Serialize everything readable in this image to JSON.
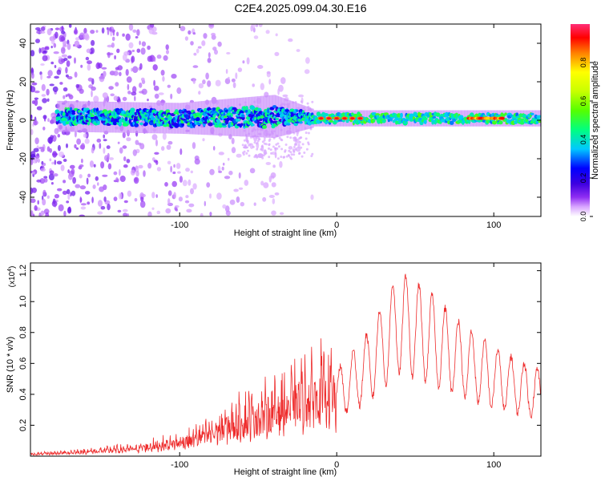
{
  "title": "C2E4.2025.099.04.30.E16",
  "chart_data": [
    {
      "type": "heatmap",
      "xlabel": "Height of straight line (km)",
      "ylabel": "Frequency (Hz)",
      "xlim": [
        -195,
        130
      ],
      "ylim": [
        -50,
        50
      ],
      "xticks": [
        -100,
        0,
        100
      ],
      "yticks": [
        -40,
        -20,
        0,
        20,
        40
      ],
      "colorbar": {
        "label": "Normalized spectral amplitude",
        "range": [
          0,
          1
        ],
        "ticks": [
          "0.0",
          "0.2",
          "0.4",
          "0.6",
          "0.8"
        ],
        "tick_values": [
          0.0,
          0.2,
          0.4,
          0.6,
          0.8
        ],
        "colors": [
          "#ffffff",
          "#d9a6ff",
          "#8f2ef2",
          "#3d00e0",
          "#0000ff",
          "#00c8ff",
          "#00ff80",
          "#a0ff00",
          "#ffff00",
          "#ff8000",
          "#ff0000",
          "#ff2e77"
        ]
      },
      "band": {
        "description_points": [
          {
            "x": -175,
            "center": 2,
            "halfwidth": 5
          },
          {
            "x": -100,
            "center": 1,
            "halfwidth": 5
          },
          {
            "x": -40,
            "center": 2,
            "halfwidth": 7
          },
          {
            "x": -15,
            "center": 1,
            "halfwidth": 3
          },
          {
            "x": 50,
            "center": 1,
            "halfwidth": 3
          },
          {
            "x": 130,
            "center": 1,
            "halfwidth": 3
          }
        ],
        "hotspots_x": [
          -10,
          -5,
          0,
          5,
          10,
          15,
          85,
          90,
          95,
          100,
          105
        ]
      }
    },
    {
      "type": "line",
      "xlabel": "Height of straight line (km)",
      "ylabel": "SNR (10 * v/v)",
      "multiplier_label": "(x10",
      "multiplier_exp": "4",
      "xlim": [
        -195,
        130
      ],
      "ylim": [
        0,
        1.25
      ],
      "xticks": [
        -100,
        0,
        100
      ],
      "yticks": [
        "0.2",
        "0.4",
        "0.6",
        "0.8",
        "1.0",
        "1.2"
      ],
      "ytick_values": [
        0.2,
        0.4,
        0.6,
        0.8,
        1.0,
        1.2
      ],
      "line_color": "#ee2b2b",
      "envelope": [
        {
          "x": -195,
          "y": 0.02
        },
        {
          "x": -160,
          "y": 0.05
        },
        {
          "x": -130,
          "y": 0.08
        },
        {
          "x": -100,
          "y": 0.15
        },
        {
          "x": -80,
          "y": 0.25
        },
        {
          "x": -60,
          "y": 0.4
        },
        {
          "x": -40,
          "y": 0.5
        },
        {
          "x": -20,
          "y": 0.65
        },
        {
          "x": -5,
          "y": 0.75
        },
        {
          "x": 0,
          "y": 0.55
        },
        {
          "x": 20,
          "y": 0.8
        },
        {
          "x": 40,
          "y": 1.2
        },
        {
          "x": 60,
          "y": 1.05
        },
        {
          "x": 80,
          "y": 0.85
        },
        {
          "x": 100,
          "y": 0.7
        },
        {
          "x": 130,
          "y": 0.55
        }
      ]
    }
  ]
}
